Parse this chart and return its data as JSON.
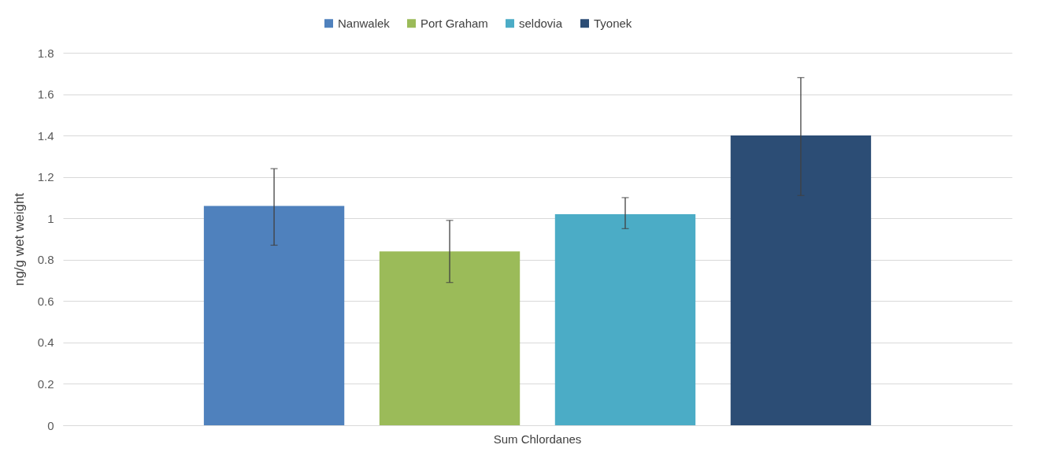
{
  "chart_data": {
    "type": "bar",
    "ylabel": "ng/g wet weight",
    "categories": [
      "Sum Chlordanes"
    ],
    "series": [
      {
        "name": "Nanwalek",
        "color": "#4f81bd",
        "values": [
          1.06
        ],
        "errors": [
          [
            0.87,
            1.24
          ]
        ]
      },
      {
        "name": "Port Graham",
        "color": "#9bbb59",
        "values": [
          0.84
        ],
        "errors": [
          [
            0.69,
            0.99
          ]
        ]
      },
      {
        "name": "seldovia",
        "color": "#4bacc6",
        "values": [
          1.02
        ],
        "errors": [
          [
            0.95,
            1.1
          ]
        ]
      },
      {
        "name": "Tyonek",
        "color": "#2c4d75",
        "values": [
          1.4
        ],
        "errors": [
          [
            1.11,
            1.68
          ]
        ]
      }
    ],
    "ylim": [
      0,
      1.8
    ],
    "yticks": [
      0,
      0.2,
      0.4,
      0.6,
      0.8,
      1,
      1.2,
      1.4,
      1.6,
      1.8
    ],
    "grid": "y",
    "legend": "top"
  }
}
